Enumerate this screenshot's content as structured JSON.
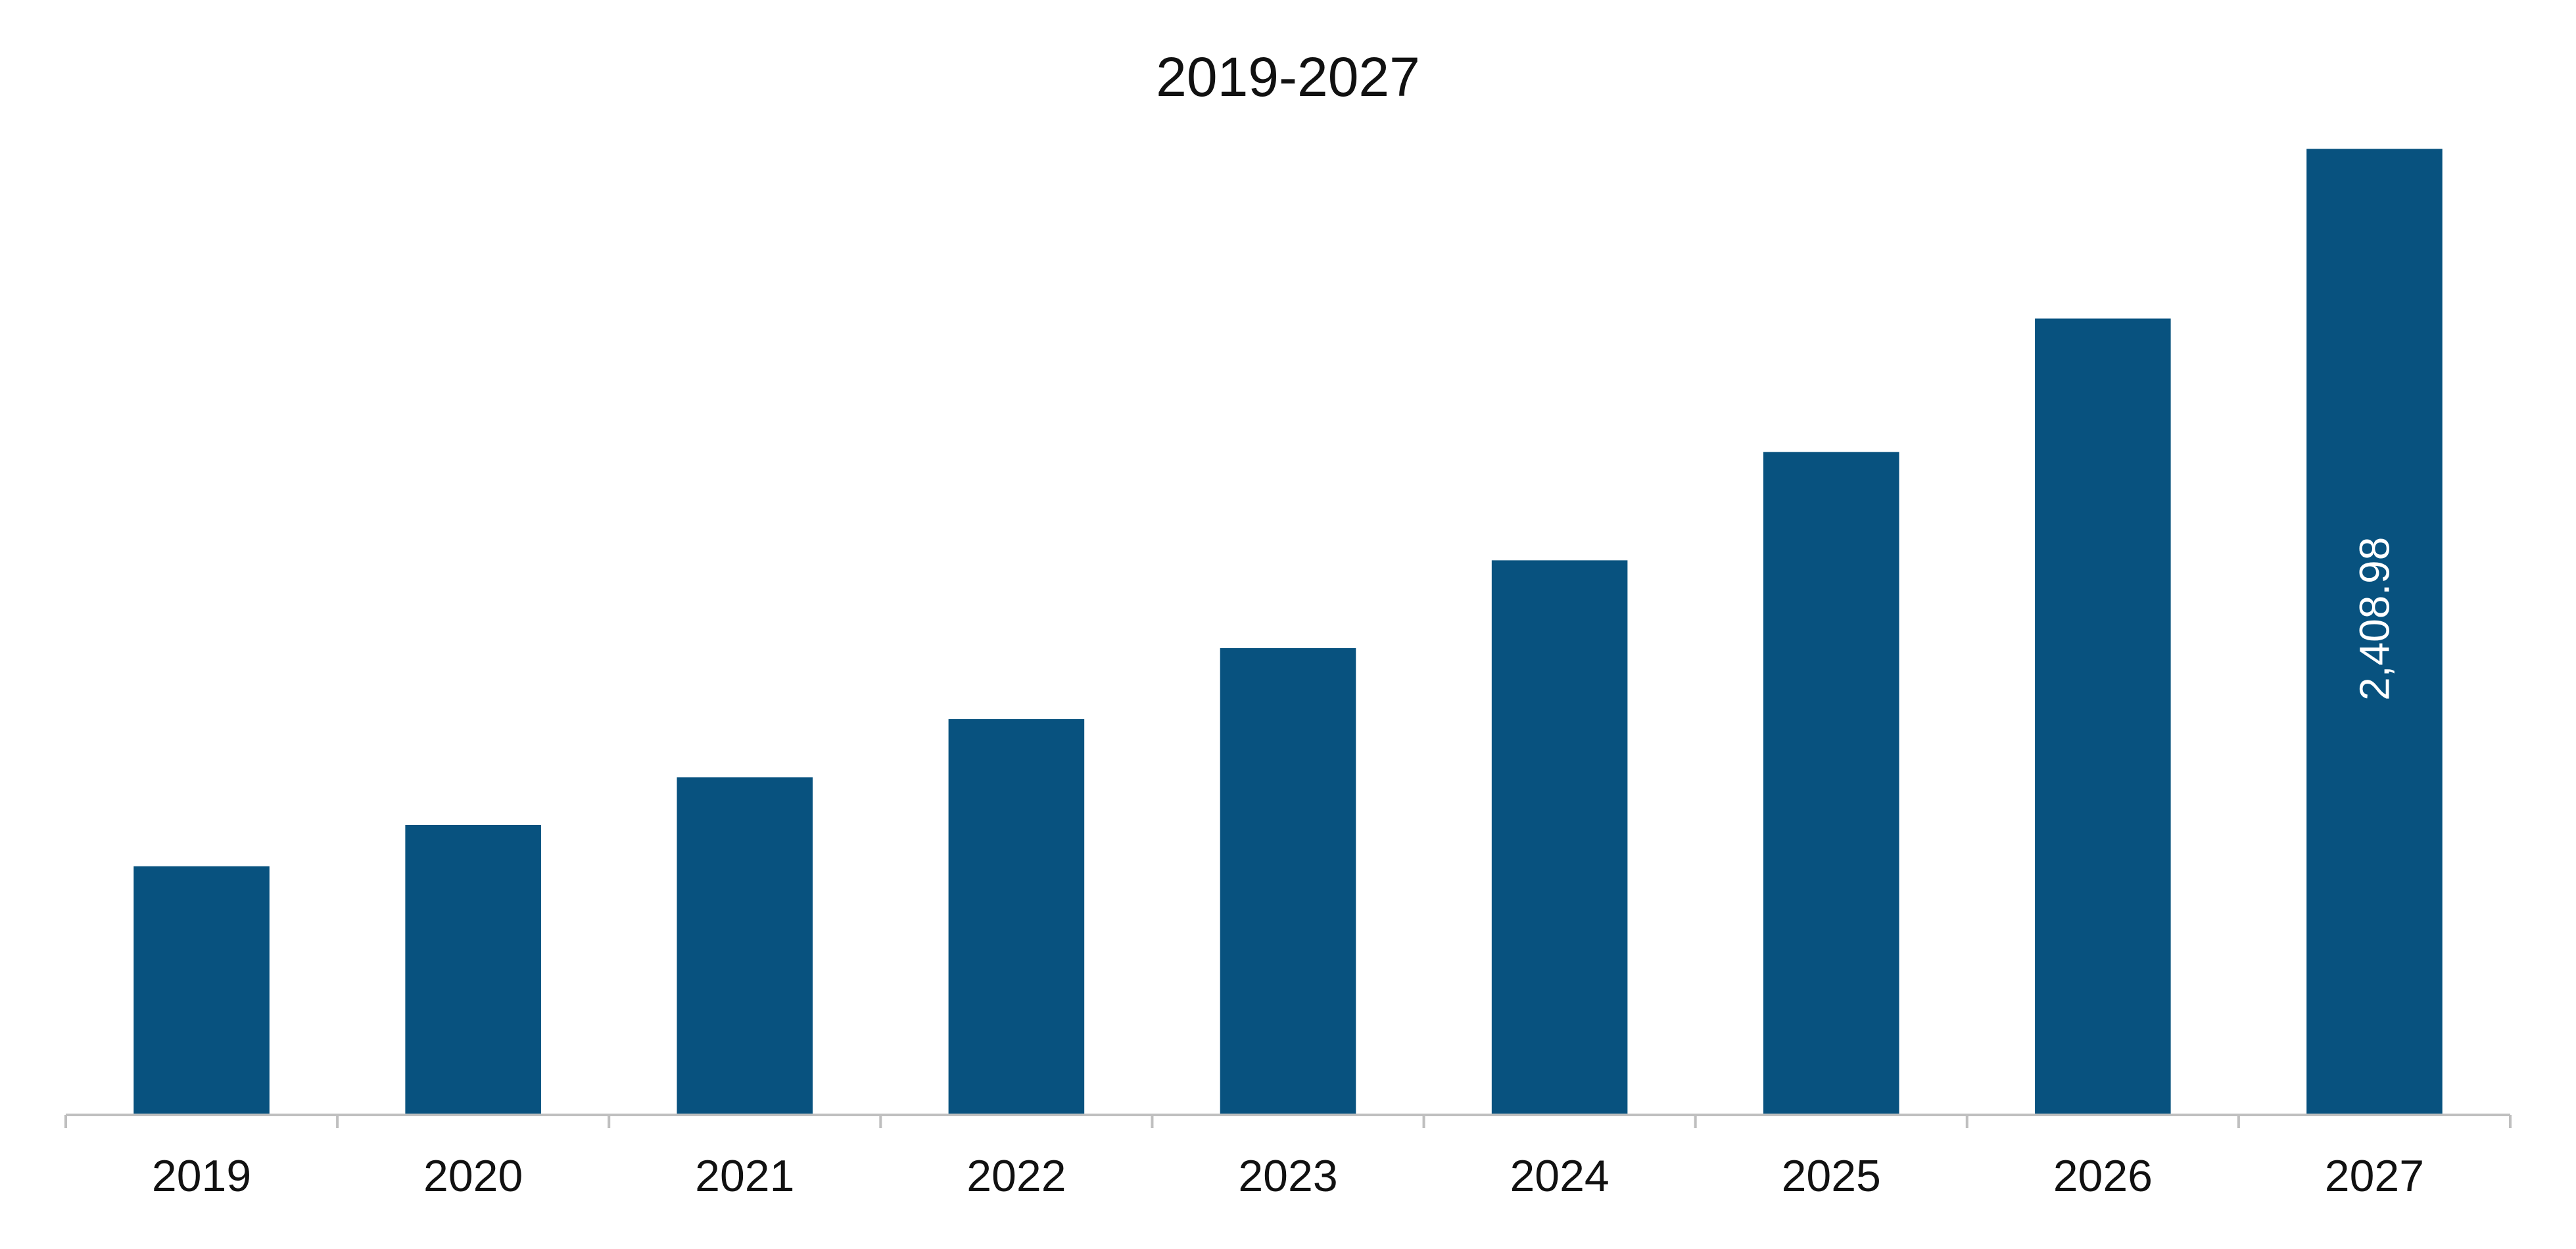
{
  "chart_data": {
    "type": "bar",
    "title": "2019-2027",
    "xlabel": "",
    "ylabel": "",
    "categories": [
      "2019",
      "2020",
      "2021",
      "2022",
      "2023",
      "2024",
      "2025",
      "2026",
      "2027"
    ],
    "values": [
      620,
      723,
      842,
      987,
      1164,
      1383,
      1653,
      1986,
      2408.98
    ],
    "data_labels": [
      "",
      "",
      "",
      "",
      "",
      "",
      "",
      "",
      "2,408.98"
    ],
    "ylim": [
      0,
      2600
    ],
    "grid": false,
    "legend": "none",
    "colors": {
      "bar": "#08527f",
      "axis": "#bfbfbf",
      "text": "#111111",
      "data_label": "#ffffff"
    }
  }
}
